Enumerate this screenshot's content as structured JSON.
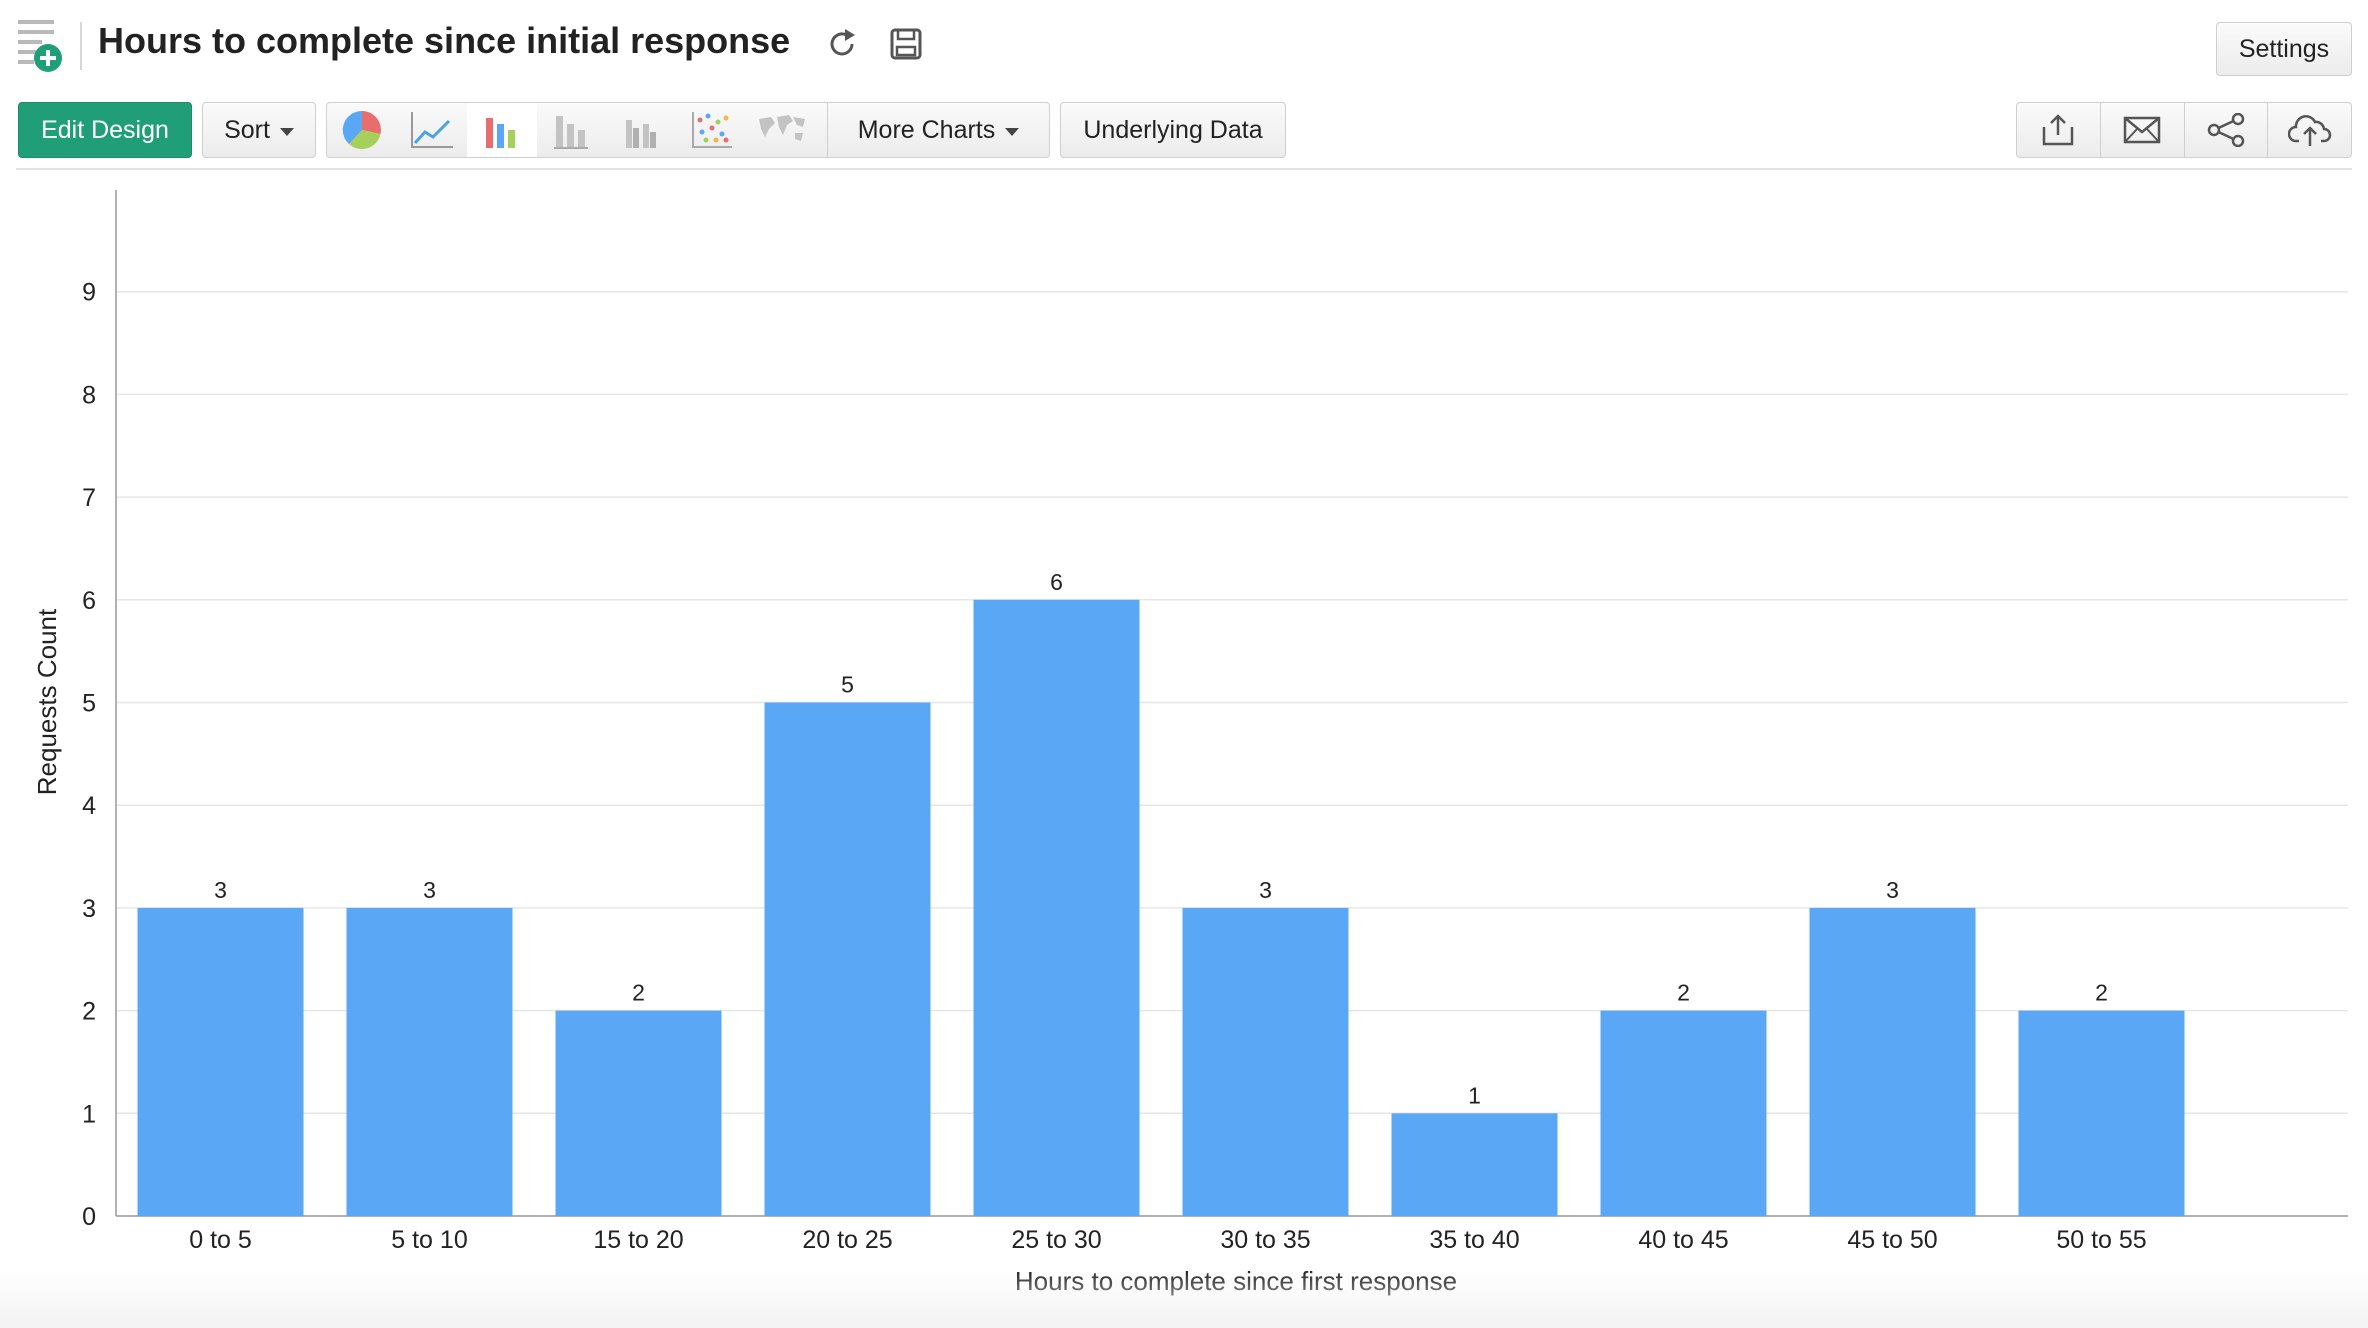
{
  "header": {
    "title": "Hours to complete since initial response",
    "settings_label": "Settings"
  },
  "toolbar": {
    "edit_design_label": "Edit Design",
    "sort_label": "Sort",
    "more_charts_label": "More Charts",
    "underlying_data_label": "Underlying Data",
    "chart_types": [
      "pie-chart-icon",
      "line-chart-icon",
      "bar-chart-icon",
      "stacked-bar-icon",
      "grouped-bar-icon",
      "scatter-chart-icon",
      "map-chart-icon"
    ],
    "active_chart_type": "bar-chart-icon",
    "actions": [
      "export-icon",
      "email-icon",
      "share-icon",
      "publish-cloud-icon"
    ]
  },
  "colors": {
    "accent": "#1f9e78",
    "bar": "#5aa8f5",
    "gridline": "#e6e6e6"
  },
  "chart_data": {
    "type": "bar",
    "categories": [
      "0 to 5",
      "5 to 10",
      "15 to 20",
      "20 to 25",
      "25 to 30",
      "30 to 35",
      "35 to 40",
      "40 to 45",
      "45 to 50",
      "50 to 55"
    ],
    "values": [
      3,
      3,
      2,
      5,
      6,
      3,
      1,
      2,
      3,
      2
    ],
    "xlabel": "Hours to complete since first response",
    "ylabel": "Requests Count",
    "ylim": [
      0,
      9
    ],
    "yticks": [
      0,
      1,
      2,
      3,
      4,
      5,
      6,
      7,
      8,
      9
    ],
    "grid": true,
    "data_labels": true
  }
}
